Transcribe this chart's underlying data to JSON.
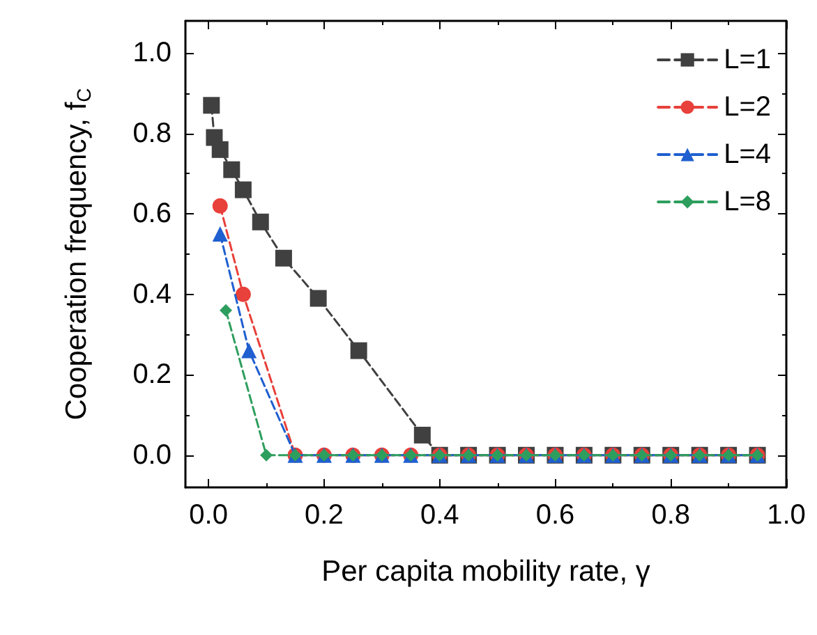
{
  "chart_data": {
    "type": "line",
    "xlabel": "Per capita mobility rate, γ",
    "ylabel": "Cooperation frequency, f$_{C}$",
    "xlim": [
      -0.04,
      1.0
    ],
    "xticks": [
      {
        "value": 0,
        "label": "0.0"
      },
      0.2,
      0.4,
      0.6,
      0.8,
      {
        "value": 1,
        "label": "1.0"
      }
    ],
    "ylim": [
      -0.08,
      1.08
    ],
    "yticks": [
      {
        "value": 0,
        "label": "0.0"
      },
      0.2,
      0.4,
      0.6,
      0.8,
      {
        "value": 1,
        "label": "1.0"
      }
    ],
    "grid": false,
    "legend": "top right",
    "line_style": "dashed",
    "series": [
      {
        "name": "L=1",
        "color": "#404040",
        "marker": "square",
        "x": [
          0.005,
          0.01,
          0.02,
          0.04,
          0.06,
          0.09,
          0.13,
          0.19,
          0.26,
          0.37,
          0.4,
          0.45,
          0.5,
          0.55,
          0.6,
          0.65,
          0.7,
          0.75,
          0.8,
          0.85,
          0.9,
          0.95
        ],
        "values": [
          0.87,
          0.79,
          0.76,
          0.71,
          0.66,
          0.58,
          0.49,
          0.39,
          0.26,
          0.05,
          0,
          0,
          0,
          0,
          0,
          0,
          0,
          0,
          0,
          0,
          0,
          0
        ]
      },
      {
        "name": "L=2",
        "color": "#e8403a",
        "marker": "circle",
        "x": [
          0.02,
          0.06,
          0.15,
          0.2,
          0.25,
          0.3,
          0.35,
          0.4,
          0.45,
          0.5,
          0.55,
          0.6,
          0.65,
          0.7,
          0.75,
          0.8,
          0.85,
          0.9,
          0.95
        ],
        "values": [
          0.62,
          0.4,
          0,
          0,
          0,
          0,
          0,
          0,
          0,
          0,
          0,
          0,
          0,
          0,
          0,
          0,
          0,
          0,
          0
        ]
      },
      {
        "name": "L=4",
        "color": "#1f5fd0",
        "marker": "triangle",
        "x": [
          0.02,
          0.07,
          0.15,
          0.2,
          0.25,
          0.3,
          0.35,
          0.4,
          0.45,
          0.5,
          0.55,
          0.6,
          0.65,
          0.7,
          0.75,
          0.8,
          0.85,
          0.9,
          0.95
        ],
        "values": [
          0.55,
          0.26,
          0,
          0,
          0,
          0,
          0,
          0,
          0,
          0,
          0,
          0,
          0,
          0,
          0,
          0,
          0,
          0,
          0
        ]
      },
      {
        "name": "L=8",
        "color": "#2e9e5e",
        "marker": "diamond",
        "x": [
          0.03,
          0.1,
          0.15,
          0.2,
          0.25,
          0.3,
          0.35,
          0.4,
          0.45,
          0.5,
          0.55,
          0.6,
          0.65,
          0.7,
          0.75,
          0.8,
          0.85,
          0.9,
          0.95
        ],
        "values": [
          0.36,
          0,
          0,
          0,
          0,
          0,
          0,
          0,
          0,
          0,
          0,
          0,
          0,
          0,
          0,
          0,
          0,
          0,
          0
        ]
      }
    ]
  }
}
